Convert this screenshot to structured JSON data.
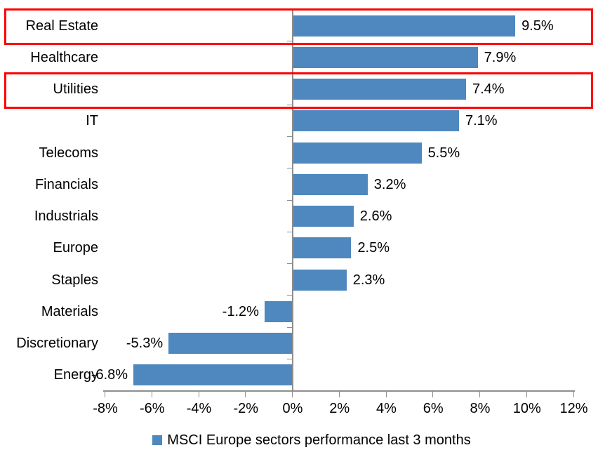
{
  "chart_data": {
    "type": "bar",
    "orientation": "horizontal",
    "title": "",
    "categories": [
      "Real Estate",
      "Healthcare",
      "Utilities",
      "IT",
      "Telecoms",
      "Financials",
      "Industrials",
      "Europe",
      "Staples",
      "Materials",
      "Discretionary",
      "Energy"
    ],
    "values": [
      9.5,
      7.9,
      7.4,
      7.1,
      5.5,
      3.2,
      2.6,
      2.5,
      2.3,
      -1.2,
      -5.3,
      -6.8
    ],
    "value_labels": [
      "9.5%",
      "7.9%",
      "7.4%",
      "7.1%",
      "5.5%",
      "3.2%",
      "2.6%",
      "2.5%",
      "2.3%",
      "-1.2%",
      "-5.3%",
      "-6.8%"
    ],
    "xlim": [
      -8,
      12
    ],
    "x_tick_values": [
      -8,
      -6,
      -4,
      -2,
      0,
      2,
      4,
      6,
      8,
      10,
      12
    ],
    "x_tick_labels": [
      "-8%",
      "-6%",
      "-4%",
      "-2%",
      "0%",
      "2%",
      "4%",
      "6%",
      "8%",
      "10%",
      "12%"
    ],
    "grid": false,
    "legend": "MSCI Europe sectors performance last 3 months",
    "legend_position": "bottom",
    "bar_color": "#4E88BE",
    "axis_color": "#8E8E8E",
    "text_color": "#000000",
    "highlight_color": "#FE0000",
    "highlighted_categories": [
      "Real Estate",
      "Utilities"
    ]
  }
}
